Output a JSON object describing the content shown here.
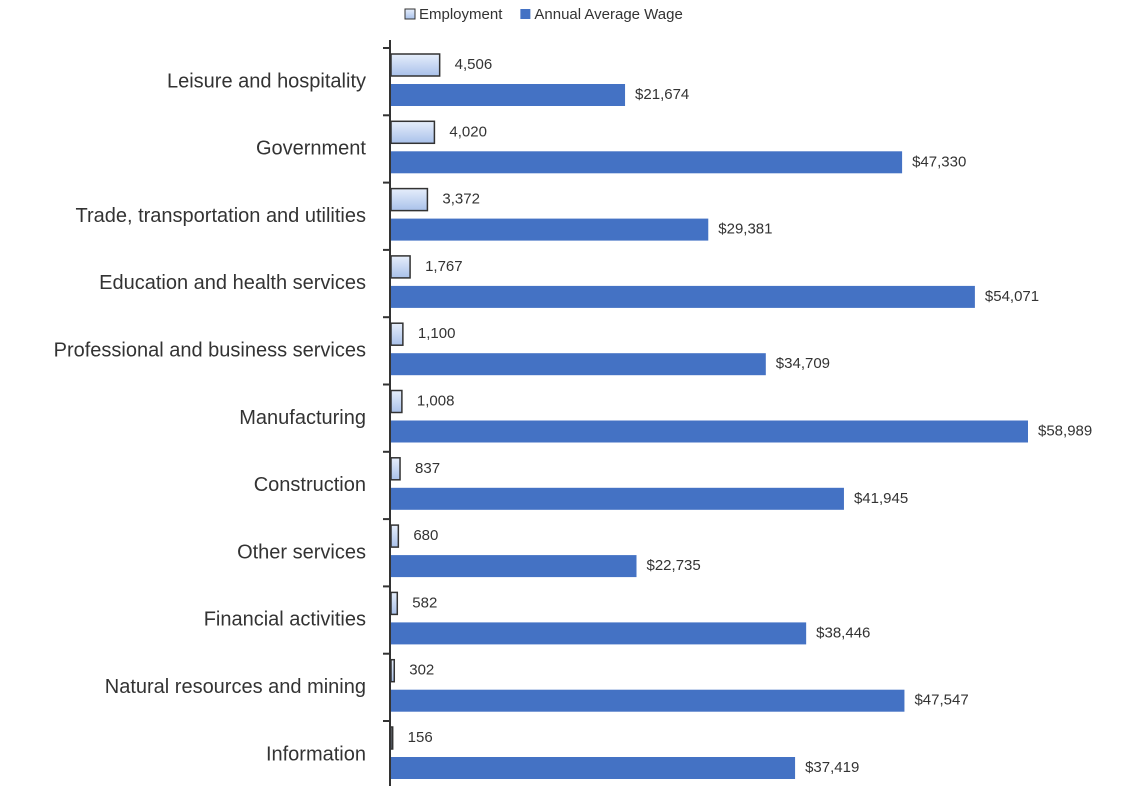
{
  "chart_data": {
    "type": "bar",
    "orientation": "horizontal",
    "legend": "top",
    "categories": [
      "Leisure and hospitality",
      "Government",
      "Trade, transportation and utilities",
      "Education and health services",
      "Professional and business services",
      "Manufacturing",
      "Construction",
      "Other services",
      "Financial activities",
      "Natural resources and mining",
      "Information"
    ],
    "series": [
      {
        "name": "Employment",
        "color": "#c5d5f1",
        "values": [
          4506,
          4020,
          3372,
          1767,
          1100,
          1008,
          837,
          680,
          582,
          302,
          156
        ],
        "value_labels": [
          "4,506",
          "4,020",
          "3,372",
          "1,767",
          "1,100",
          "1,008",
          "837",
          "680",
          "582",
          "302",
          "156"
        ]
      },
      {
        "name": "Annual Average Wage",
        "color": "#4472c4",
        "values": [
          21674,
          47330,
          29381,
          54071,
          34709,
          58989,
          41945,
          22735,
          38446,
          47547,
          37419
        ],
        "value_labels": [
          "$21,674",
          "$47,330",
          "$29,381",
          "$54,071",
          "$34,709",
          "$58,989",
          "$41,945",
          "$22,735",
          "$38,446",
          "$47,547",
          "$37,419"
        ]
      }
    ]
  }
}
